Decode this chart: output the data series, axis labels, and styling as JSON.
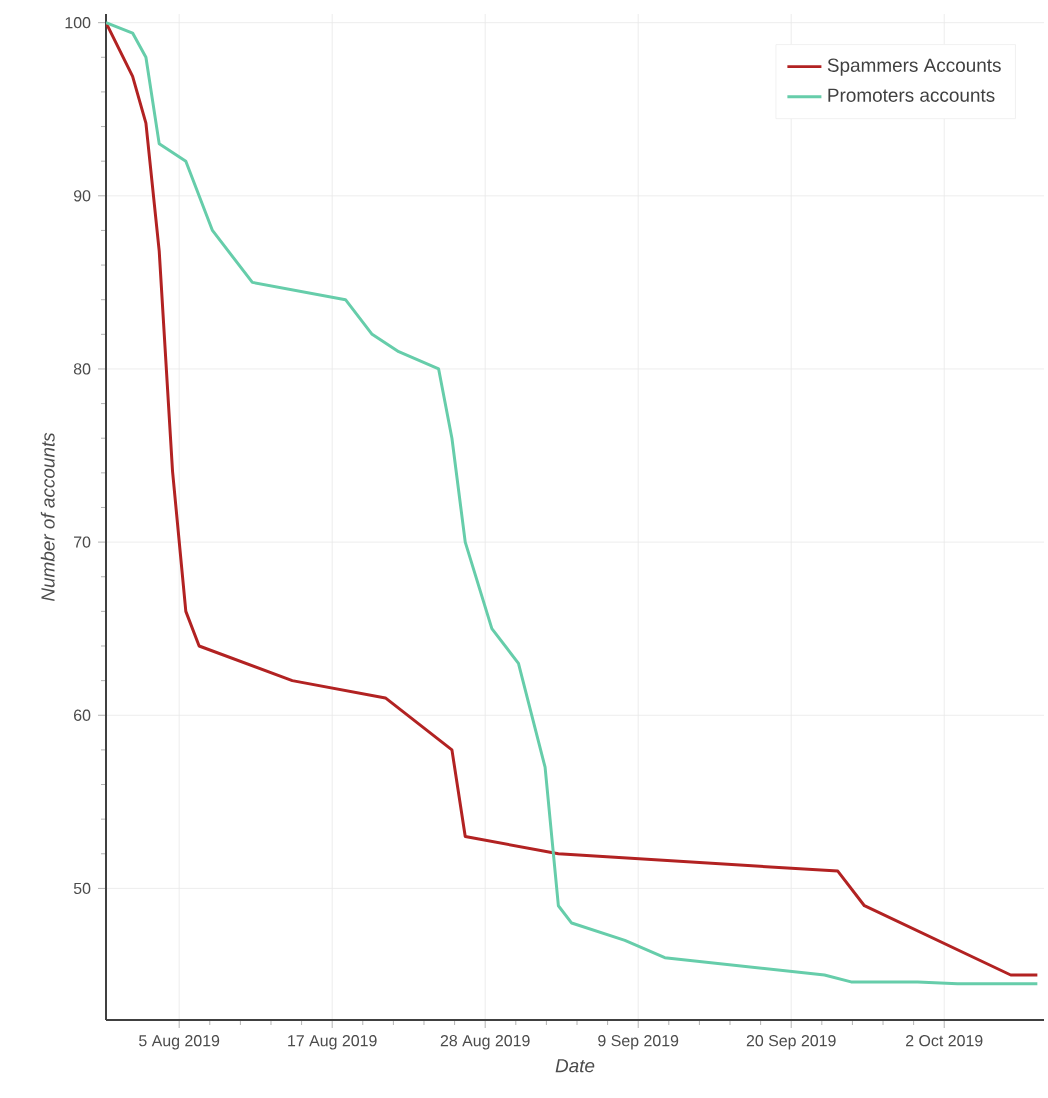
{
  "chart_data": {
    "type": "line",
    "xlabel": "Date",
    "ylabel": "Number of accounts",
    "xlim": [
      "2019-07-31",
      "2019-10-09T12:00"
    ],
    "ylim": [
      42.4,
      100.5
    ],
    "xticks": [
      {
        "value": "2019-08-05T12:00",
        "label": "5 Aug 2019"
      },
      {
        "value": "2019-08-17",
        "label": "17 Aug 2019"
      },
      {
        "value": "2019-08-28T12:00",
        "label": "28 Aug 2019"
      },
      {
        "value": "2019-09-09",
        "label": "9 Sep 2019"
      },
      {
        "value": "2019-09-20T12:00",
        "label": "20 Sep 2019"
      },
      {
        "value": "2019-10-02",
        "label": "2 Oct 2019"
      }
    ],
    "yticks": [
      50,
      60,
      70,
      80,
      90,
      100
    ],
    "grid": true,
    "legend": "top right",
    "series": [
      {
        "name": "Spammers Accounts",
        "color": "#b22222",
        "x": [
          "2019-07-31",
          "2019-08-02",
          "2019-08-03",
          "2019-08-04",
          "2019-08-05",
          "2019-08-06",
          "2019-08-07",
          "2019-08-14",
          "2019-08-21",
          "2019-08-26",
          "2019-08-27",
          "2019-09-03",
          "2019-09-24",
          "2019-09-26",
          "2019-10-07",
          "2019-10-09"
        ],
        "values": [
          100,
          96.9,
          94.2,
          86.8,
          74.1,
          66,
          64,
          62,
          61,
          58,
          53,
          52,
          51,
          49,
          45,
          45
        ]
      },
      {
        "name": "Promoters accounts",
        "color": "#66cdaa",
        "x": [
          "2019-07-31",
          "2019-08-02",
          "2019-08-03",
          "2019-08-04",
          "2019-08-06",
          "2019-08-08",
          "2019-08-11",
          "2019-08-18",
          "2019-08-20",
          "2019-08-22",
          "2019-08-25",
          "2019-08-26",
          "2019-08-27",
          "2019-08-29",
          "2019-08-31",
          "2019-09-02",
          "2019-09-03",
          "2019-09-04",
          "2019-09-08",
          "2019-09-11",
          "2019-09-23",
          "2019-09-25",
          "2019-09-30",
          "2019-10-03",
          "2019-10-09"
        ],
        "values": [
          100,
          99.4,
          98,
          93,
          92,
          88,
          85,
          84,
          82,
          81,
          80,
          76,
          70,
          65,
          63,
          57,
          49,
          48,
          47,
          46,
          45,
          44.6,
          44.6,
          44.5,
          44.5
        ]
      }
    ]
  }
}
